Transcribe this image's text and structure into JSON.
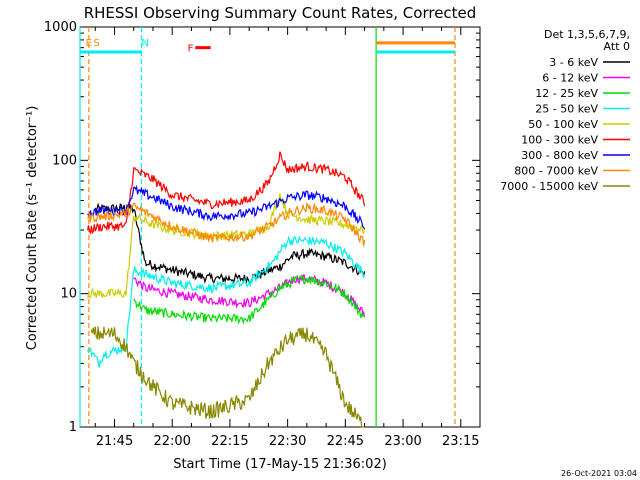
{
  "chart_data": {
    "type": "line",
    "title": "RHESSI Observing Summary Count Rates, Corrected",
    "xlabel": "Start Time (17-May-15 21:36:02)",
    "ylabel": "Corrected Count Rate (s⁻¹ detector⁻¹)",
    "y_scale": "log",
    "ylim": [
      1,
      1000
    ],
    "xlim": [
      "21:36:02",
      "23:20:00"
    ],
    "x_ticks": [
      "21:45",
      "22:00",
      "22:15",
      "22:30",
      "22:45",
      "23:00",
      "23:15"
    ],
    "y_ticks": [
      "1",
      "10",
      "100",
      "1000"
    ],
    "grid": false,
    "legend_header": [
      "Det 1,3,5,6,7,9,",
      "Att 0"
    ],
    "legend_position": "right",
    "series": [
      {
        "name": "3 - 6 keV",
        "color": "#000000",
        "t": [
          "21:40",
          "21:48",
          "21:50",
          "21:53",
          "22:00",
          "22:10",
          "22:20",
          "22:28",
          "22:31",
          "22:35",
          "22:40",
          "22:45",
          "22:50"
        ],
        "values": [
          43,
          44,
          43,
          17,
          15,
          13,
          13,
          16,
          19,
          20,
          19,
          17,
          14
        ]
      },
      {
        "name": "6 - 12 keV",
        "color": "#ee00ee",
        "t": [
          "21:50",
          "21:53",
          "22:00",
          "22:10",
          "22:20",
          "22:28",
          "22:32",
          "22:35",
          "22:40",
          "22:45",
          "22:50"
        ],
        "values": [
          13,
          11,
          10,
          9,
          8.5,
          11,
          13,
          13,
          12,
          10,
          7
        ]
      },
      {
        "name": "12 - 25 keV",
        "color": "#00dd00",
        "t": [
          "21:50",
          "21:53",
          "22:00",
          "22:10",
          "22:20",
          "22:28",
          "22:32",
          "22:35",
          "22:40",
          "22:45",
          "22:50"
        ],
        "values": [
          9,
          7.5,
          7,
          6.5,
          6.5,
          11,
          12.5,
          13,
          12,
          10,
          6.5
        ]
      },
      {
        "name": "25 - 50 keV",
        "color": "#00eeee",
        "t": [
          "21:38",
          "21:41",
          "21:42",
          "21:48",
          "21:50",
          "21:53",
          "22:00",
          "22:10",
          "22:20",
          "22:26",
          "22:30",
          "22:35",
          "22:40",
          "22:45",
          "22:50"
        ],
        "values": [
          4,
          3,
          3.5,
          4,
          15,
          14,
          12,
          11,
          12,
          17,
          25,
          25,
          24,
          20,
          14
        ]
      },
      {
        "name": "50 - 100 keV",
        "color": "#cccc00",
        "t": [
          "21:38",
          "21:42",
          "21:48",
          "21:50",
          "21:55",
          "22:00",
          "22:10",
          "22:20",
          "22:25",
          "22:28",
          "22:30",
          "22:35",
          "22:40",
          "22:45",
          "22:50"
        ],
        "values": [
          10,
          10,
          10,
          38,
          33,
          30,
          27,
          28,
          32,
          55,
          40,
          36,
          35,
          33,
          30
        ]
      },
      {
        "name": "100 - 300 keV",
        "color": "#ff0000",
        "t": [
          "21:38",
          "21:42",
          "21:48",
          "21:50",
          "21:55",
          "22:00",
          "22:10",
          "22:20",
          "22:25",
          "22:28",
          "22:30",
          "22:35",
          "22:40",
          "22:45",
          "22:50"
        ],
        "values": [
          30,
          32,
          32,
          85,
          72,
          55,
          47,
          50,
          68,
          110,
          85,
          90,
          85,
          75,
          48
        ]
      },
      {
        "name": "300 - 800 keV",
        "color": "#0000ff",
        "t": [
          "21:38",
          "21:42",
          "21:48",
          "21:50",
          "21:55",
          "22:00",
          "22:10",
          "22:20",
          "22:25",
          "22:30",
          "22:35",
          "22:40",
          "22:45",
          "22:50"
        ],
        "values": [
          40,
          42,
          42,
          60,
          53,
          45,
          38,
          40,
          45,
          52,
          55,
          52,
          45,
          32
        ]
      },
      {
        "name": "800 - 7000 keV",
        "color": "#ff8800",
        "t": [
          "21:38",
          "21:42",
          "21:48",
          "21:50",
          "21:55",
          "22:00",
          "22:10",
          "22:20",
          "22:25",
          "22:30",
          "22:35",
          "22:40",
          "22:45",
          "22:50"
        ],
        "values": [
          37,
          38,
          40,
          45,
          38,
          32,
          26,
          27,
          32,
          40,
          44,
          42,
          36,
          24
        ]
      },
      {
        "name": "7000 - 15000 keV",
        "color": "#888800",
        "t": [
          "21:39",
          "21:45",
          "21:48",
          "21:50",
          "21:55",
          "22:00",
          "22:10",
          "22:20",
          "22:25",
          "22:30",
          "22:35",
          "22:40",
          "22:45",
          "22:50"
        ],
        "values": [
          5,
          5,
          4,
          3,
          2,
          1.5,
          1.3,
          1.6,
          3,
          4.5,
          5,
          3.5,
          1.5,
          1
        ]
      }
    ],
    "annotations": [
      {
        "text": "E",
        "color": "#ff8800",
        "t": "21:37:30"
      },
      {
        "text": "S",
        "color": "#ff8800",
        "t": "21:39:30"
      },
      {
        "text": "N",
        "color": "#00eeee",
        "t": "21:52:00"
      },
      {
        "text": "F",
        "color": "#ff0000",
        "t": "22:04:00"
      }
    ],
    "vertical_markers": [
      {
        "color": "#00eeee",
        "style": "solid",
        "t": "21:36:02"
      },
      {
        "color": "#ff8800",
        "style": "dashed",
        "t": "21:38:20"
      },
      {
        "color": "#00eeee",
        "style": "dashed",
        "t": "21:52:00"
      },
      {
        "color": "#00dd00",
        "style": "solid",
        "t": "22:53:00"
      },
      {
        "color": "#ff8800",
        "style": "dashed",
        "t": "23:13:30"
      }
    ],
    "night_bars": [
      {
        "color": "#00eeee",
        "t_start": "21:36:02",
        "t_end": "21:52:00",
        "level": 650
      },
      {
        "color": "#00eeee",
        "t_start": "22:53:00",
        "t_end": "23:13:30",
        "level": 650
      },
      {
        "color": "#ff8800",
        "t_start": "22:53:00",
        "t_end": "23:13:30",
        "level": 760
      }
    ],
    "flare_bar": {
      "color": "#ff0000",
      "t_start": "22:06:00",
      "t_end": "22:10:00",
      "level": 700
    },
    "footer": "26-Oct-2021 03:04"
  }
}
